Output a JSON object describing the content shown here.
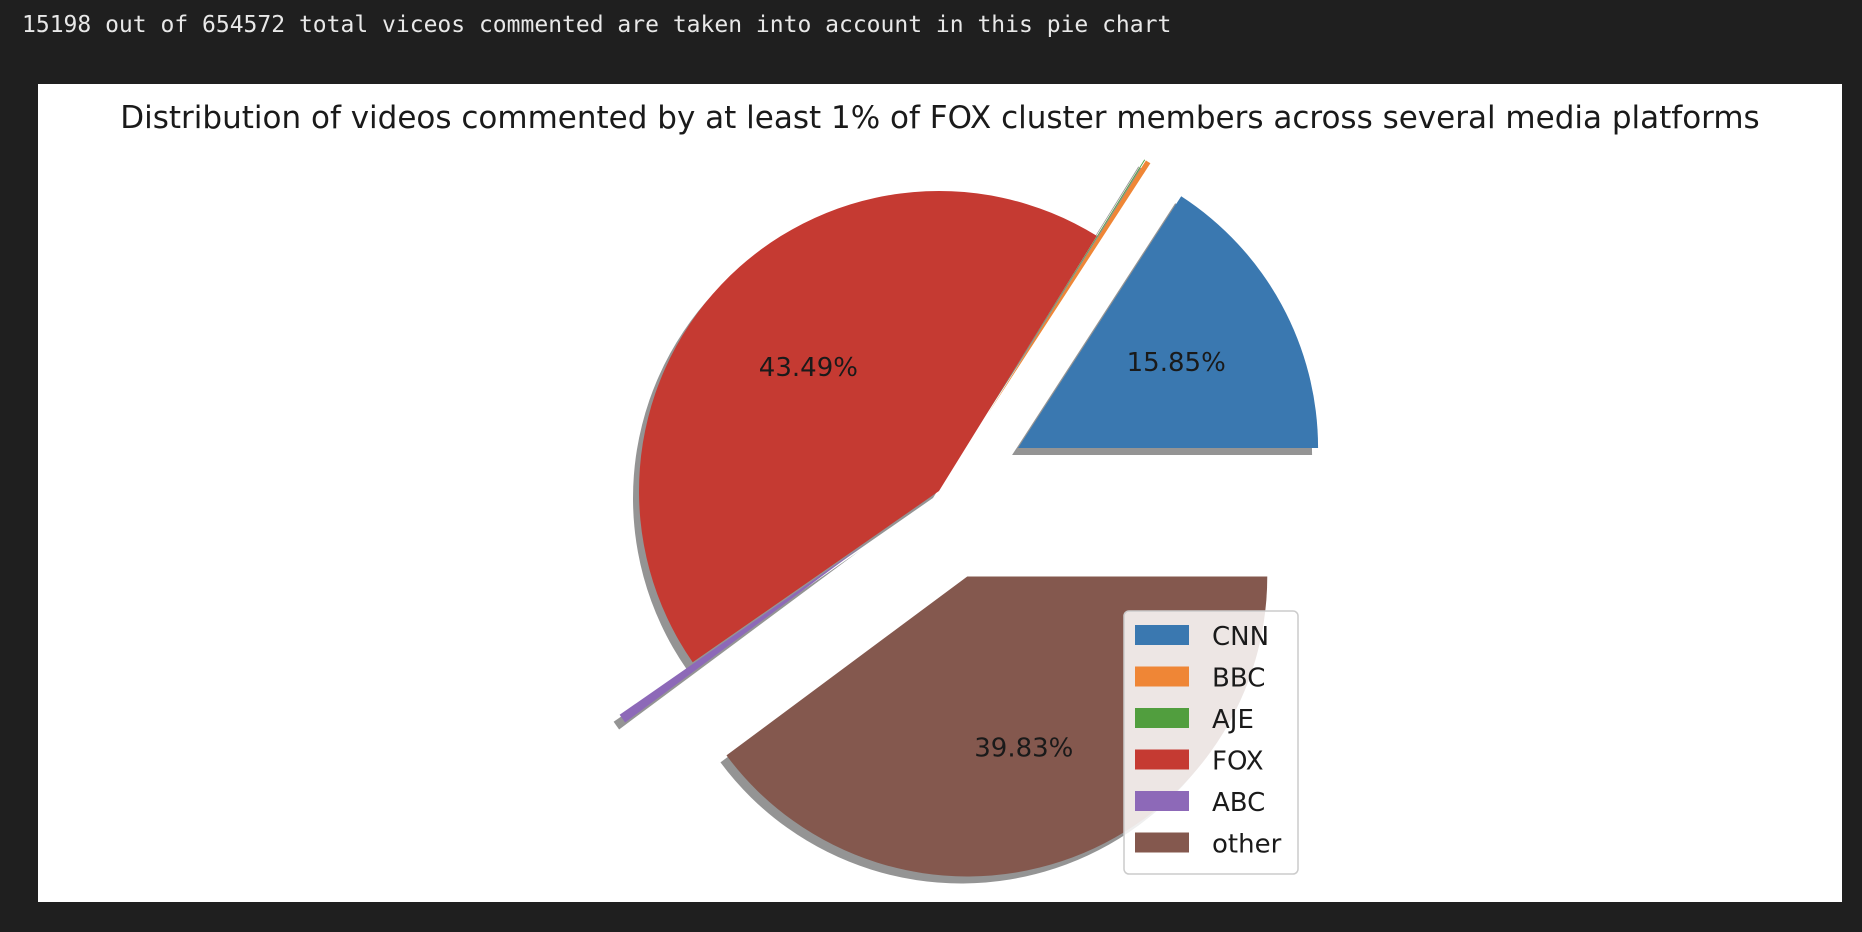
{
  "output": {
    "text": "15198 out of 654572 total viceos commented are taken into account in this pie chart"
  },
  "chart_data": {
    "type": "pie",
    "title": "Distribution of videos commented by at least 1% of FOX cluster members across several media platforms",
    "legend_position": "lower-right",
    "shadow": true,
    "slices": [
      {
        "label": "CNN",
        "value": 15.85,
        "pct_label": "15.85%",
        "color": "#3a78b0",
        "explode": 0.3
      },
      {
        "label": "BBC",
        "value": 0.28,
        "pct_label": "",
        "color": "#ef8636",
        "explode": 0.3
      },
      {
        "label": "AJE",
        "value": 0.05,
        "pct_label": "",
        "color": "#519e3e",
        "explode": 0.3
      },
      {
        "label": "FOX",
        "value": 43.49,
        "pct_label": "43.49%",
        "color": "#c53a32",
        "explode": 0.0
      },
      {
        "label": "ABC",
        "value": 0.5,
        "pct_label": "",
        "color": "#8d69b8",
        "explode": 0.3
      },
      {
        "label": "other",
        "value": 39.83,
        "pct_label": "39.83%",
        "color": "#84584e",
        "explode": 0.3
      }
    ]
  }
}
